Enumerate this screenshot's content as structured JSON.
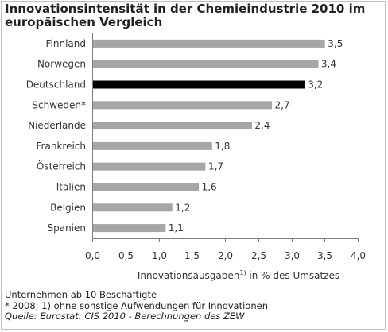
{
  "chart_data": {
    "type": "bar",
    "orientation": "horizontal",
    "title_line1": "Innovationsintensität in der Chemieindustrie 2010 im",
    "title_line2": "europäischen Vergleich",
    "categories": [
      "Finnland",
      "Norwegen",
      "Deutschland",
      "Schweden*",
      "Niederlande",
      "Frankreich",
      "Österreich",
      "Italien",
      "Belgien",
      "Spanien"
    ],
    "values": [
      3.5,
      3.4,
      3.2,
      2.7,
      2.4,
      1.8,
      1.7,
      1.6,
      1.2,
      1.1
    ],
    "value_labels": [
      "3,5",
      "3,4",
      "3,2",
      "2,7",
      "2,4",
      "1,8",
      "1,7",
      "1,6",
      "1,2",
      "1,1"
    ],
    "highlight_category": "Deutschland",
    "colors": {
      "bar": "#a6a6a6",
      "highlight": "#000000"
    },
    "xlim": [
      0,
      4
    ],
    "xticks": [
      0,
      0.5,
      1,
      1.5,
      2,
      2.5,
      3,
      3.5,
      4
    ],
    "xtick_labels": [
      "0,0",
      "0,5",
      "1,0",
      "1,5",
      "2,0",
      "2,5",
      "3,0",
      "3,5",
      "4,0"
    ],
    "xlabel_pre": "Innovationsausgaben",
    "xlabel_sup": "1)",
    "xlabel_post": " in % des Umsatzes",
    "grid": false,
    "legend": "none"
  },
  "notes": {
    "line1": "Unternehmen ab 10 Beschäftigte",
    "line2": "* 2008; 1) ohne sonstige Aufwendungen für Innovationen",
    "source": "Quelle: Eurostat: CIS 2010 - Berechnungen des ZEW"
  }
}
